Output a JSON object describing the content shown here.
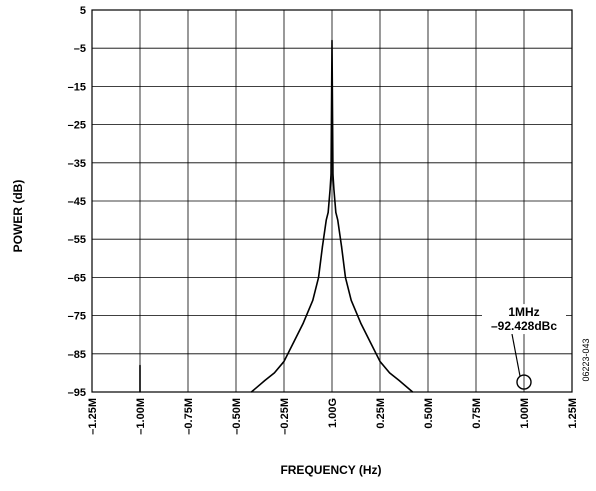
{
  "chart_data": {
    "type": "line",
    "title": "",
    "xlabel": "FREQUENCY (Hz)",
    "ylabel": "POWER (dB)",
    "x_unit": "offset from carrier (MHz)",
    "xlim": [
      -1.25,
      1.25
    ],
    "ylim": [
      -95,
      5
    ],
    "grid": true,
    "x_ticks": [
      -1.25,
      -1.0,
      -0.75,
      -0.5,
      -0.25,
      0,
      0.25,
      0.5,
      0.75,
      1.0,
      1.25
    ],
    "x_tick_labels": [
      "–1.25M",
      "–1.00M",
      "–0.75M",
      "–0.50M",
      "–0.25M",
      "1.00G",
      "0.25M",
      "0.50M",
      "0.75M",
      "1.00M",
      "1.25M"
    ],
    "y_ticks": [
      5,
      -5,
      -15,
      -25,
      -35,
      -45,
      -55,
      -65,
      -75,
      -85,
      -95
    ],
    "y_tick_labels": [
      "5",
      "–5",
      "–15",
      "–25",
      "–35",
      "–45",
      "–55",
      "–65",
      "–75",
      "–85",
      "–95"
    ],
    "series": [
      {
        "color": "#000000",
        "x": [
          -1.0,
          -1.0,
          -1.0,
          -0.42,
          -0.35,
          -0.3,
          -0.25,
          -0.2,
          -0.15,
          -0.1,
          -0.07,
          -0.05,
          -0.03,
          -0.02,
          -0.01,
          -0.005,
          0,
          0.005,
          0.01,
          0.02,
          0.03,
          0.05,
          0.07,
          0.1,
          0.15,
          0.2,
          0.25,
          0.3,
          0.35,
          0.42
        ],
        "y": [
          -95,
          -88,
          -95,
          -95,
          -92,
          -90,
          -87,
          -82,
          -77,
          -71,
          -65,
          -57,
          -50,
          -48,
          -42,
          -38,
          -3,
          -38,
          -42,
          -48,
          -50,
          -57,
          -65,
          -71,
          -77,
          -82,
          -87,
          -90,
          -92,
          -95
        ]
      }
    ],
    "annotations": [
      {
        "lines": [
          "1MHz",
          "–92.428dBc"
        ],
        "x": 1.0,
        "y": -92.4
      }
    ]
  },
  "figure_id": "06223-043"
}
